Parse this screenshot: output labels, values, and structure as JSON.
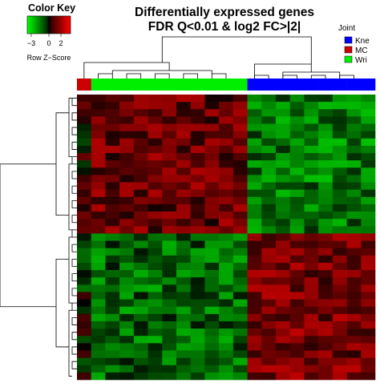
{
  "chart_data": {
    "type": "heatmap",
    "title_lines": [
      "Differentially expressed genes",
      "FDR Q<0.01 & log2 FC>|2|"
    ],
    "color_key": {
      "title": "Color Key",
      "ticks": [
        "−3",
        "0",
        "2"
      ],
      "label": "Row Z−Score",
      "range": [
        -3,
        3
      ],
      "colors": [
        "#00ff00",
        "#000000",
        "#ff0000"
      ]
    },
    "legend": {
      "title": "Joint",
      "entries": [
        {
          "label": "Kne",
          "color": "#0000ff"
        },
        {
          "label": "MC",
          "color": "#cc0000"
        },
        {
          "label": "Wri",
          "color": "#00ee00"
        }
      ]
    },
    "columns": {
      "groups": [
        {
          "joint": "MC",
          "count": 1
        },
        {
          "joint": "Wri",
          "count": 11
        },
        {
          "joint": "Kne",
          "count": 9
        }
      ]
    },
    "rows": {
      "clusters": [
        {
          "count": 19,
          "pattern": "high in Wri, low in Kne"
        },
        {
          "count": 20,
          "pattern": "low in Wri, high in Kne"
        }
      ]
    }
  }
}
